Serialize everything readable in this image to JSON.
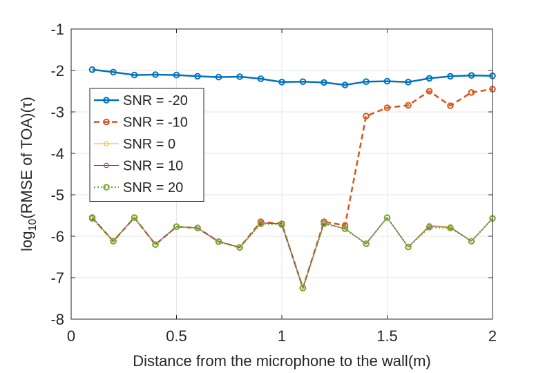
{
  "chart_data": {
    "type": "line",
    "title": "",
    "xlabel": "Distance from the microphone to the wall(m)",
    "ylabel_parts": {
      "prefix": "log",
      "subscript": "10",
      "suffix": "(RMSE of TOA)(τ)"
    },
    "xlim": [
      0,
      2
    ],
    "ylim": [
      -8,
      -1
    ],
    "x_ticks": [
      0,
      0.5,
      1,
      1.5,
      2
    ],
    "x_tick_labels": [
      "0",
      "0.5",
      "1",
      "1.5",
      "2"
    ],
    "y_ticks": [
      -8,
      -7,
      -6,
      -5,
      -4,
      -3,
      -2,
      -1
    ],
    "y_tick_labels": [
      "-8",
      "-7",
      "-6",
      "-5",
      "-4",
      "-3",
      "-2",
      "-1"
    ],
    "grid": true,
    "legend_position": "left-middle",
    "x": [
      0.1,
      0.2,
      0.3,
      0.4,
      0.5,
      0.6,
      0.7,
      0.8,
      0.9,
      1.0,
      1.1,
      1.2,
      1.3,
      1.4,
      1.5,
      1.6,
      1.7,
      1.8,
      1.9,
      2.0
    ],
    "series": [
      {
        "name": "SNR = -20",
        "color": "#0072BD",
        "dash": "solid",
        "weight": "thick",
        "values": [
          -1.98,
          -2.04,
          -2.11,
          -2.1,
          -2.11,
          -2.14,
          -2.16,
          -2.15,
          -2.2,
          -2.28,
          -2.27,
          -2.29,
          -2.35,
          -2.27,
          -2.26,
          -2.28,
          -2.19,
          -2.14,
          -2.12,
          -2.13
        ]
      },
      {
        "name": "SNR = -10",
        "color": "#D95319",
        "dash": "dashed",
        "weight": "thick",
        "values": [
          -5.55,
          -6.12,
          -5.55,
          -6.2,
          -5.77,
          -5.8,
          -6.13,
          -6.27,
          -5.65,
          -5.7,
          -7.25,
          -5.65,
          -5.74,
          -3.1,
          -2.9,
          -2.84,
          -2.5,
          -2.85,
          -2.53,
          -2.45
        ]
      },
      {
        "name": "SNR = 0",
        "color": "#EDB120",
        "dash": "solid",
        "weight": "thin",
        "values": [
          -5.55,
          -6.12,
          -5.55,
          -6.2,
          -5.77,
          -5.8,
          -6.13,
          -6.27,
          -5.68,
          -5.7,
          -7.25,
          -5.68,
          -5.82,
          -6.18,
          -5.55,
          -6.26,
          -5.74,
          -5.77,
          -6.12,
          -5.57
        ]
      },
      {
        "name": "SNR = 10",
        "color": "#7E2F8E",
        "dash": "solid",
        "weight": "thin",
        "values": [
          -5.55,
          -6.12,
          -5.55,
          -6.2,
          -5.77,
          -5.8,
          -6.13,
          -6.27,
          -5.68,
          -5.7,
          -7.25,
          -5.68,
          -5.82,
          -6.18,
          -5.55,
          -6.26,
          -5.76,
          -5.79,
          -6.12,
          -5.57
        ]
      },
      {
        "name": "SNR = 20",
        "color": "#77AC30",
        "dash": "dotted",
        "weight": "thick",
        "values": [
          -5.57,
          -6.12,
          -5.55,
          -6.2,
          -5.77,
          -5.8,
          -6.13,
          -6.27,
          -5.7,
          -5.72,
          -7.25,
          -5.7,
          -5.82,
          -6.18,
          -5.55,
          -6.26,
          -5.78,
          -5.8,
          -6.12,
          -5.57
        ]
      }
    ]
  }
}
